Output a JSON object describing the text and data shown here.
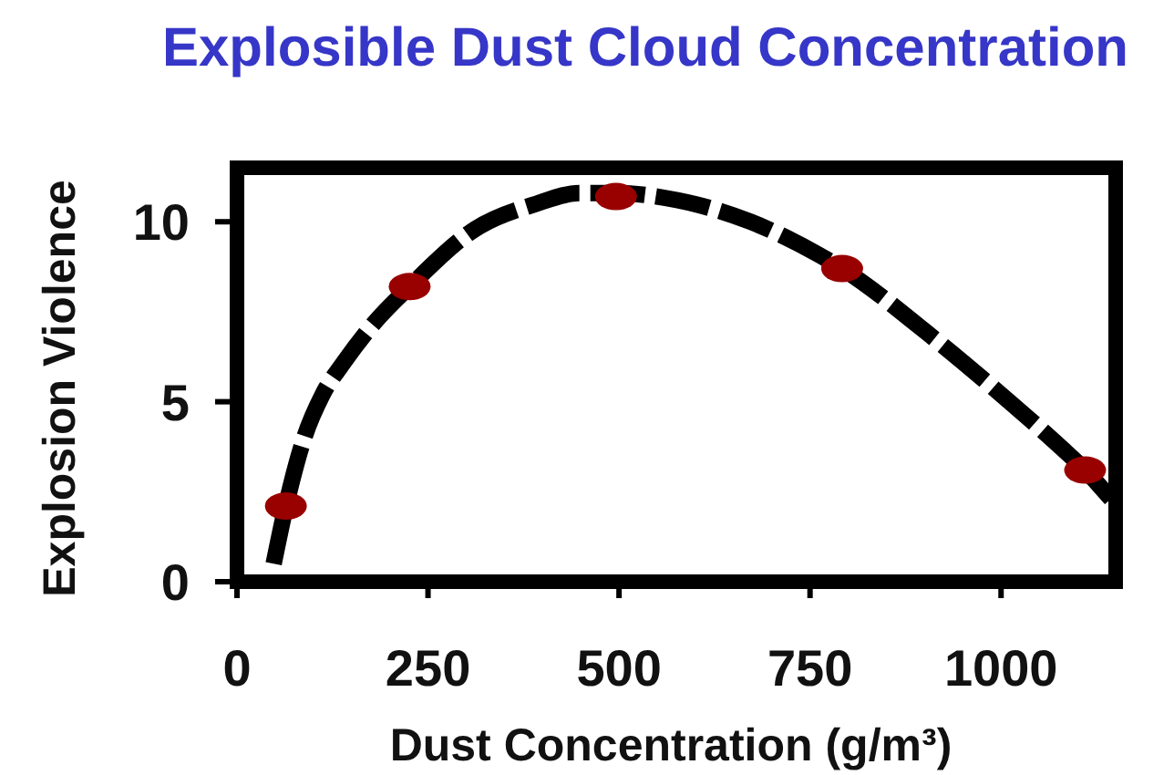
{
  "chart_data": {
    "type": "line",
    "title": "Explosible Dust Cloud Concentration",
    "xlabel": "Dust Concentration (g/m³)",
    "ylabel": "Explosion Violence",
    "xlim": [
      0,
      1150
    ],
    "xticks": [
      0,
      250,
      500,
      750,
      1000
    ],
    "ylim": [
      0,
      11.5
    ],
    "yticks": [
      0,
      5,
      10
    ],
    "series": [
      {
        "color": "#000000",
        "line_style": "dashed",
        "marker": "none",
        "x": [
          48,
          64,
          88,
          112,
          140,
          180,
          226,
          312,
          392,
          448,
          496,
          576,
          672,
          760,
          792,
          904,
          1000,
          1080,
          1110,
          1144
        ],
        "values": [
          0.5,
          2.1,
          4.0,
          5.2,
          6.1,
          7.2,
          8.2,
          9.8,
          10.5,
          10.8,
          10.8,
          10.6,
          10.0,
          9.1,
          8.7,
          6.9,
          5.2,
          3.7,
          3.1,
          2.3
        ]
      },
      {
        "type": "scatter",
        "color": "#990000",
        "marker": "circle",
        "x": [
          64,
          226,
          496,
          792,
          1110
        ],
        "values": [
          2.1,
          8.2,
          10.7,
          8.7,
          3.1
        ]
      }
    ]
  }
}
